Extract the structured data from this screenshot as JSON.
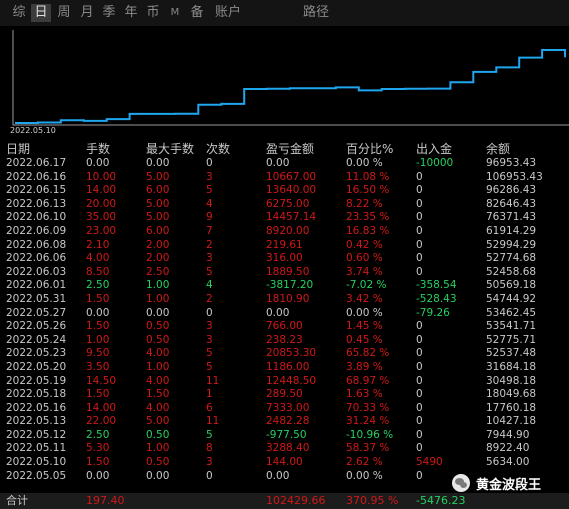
{
  "tabs": [
    {
      "label": "综",
      "active": false
    },
    {
      "label": "日",
      "active": true
    },
    {
      "label": "周",
      "active": false
    },
    {
      "label": "月",
      "active": false
    },
    {
      "label": "季",
      "active": false
    },
    {
      "label": "年",
      "active": false
    },
    {
      "label": "币",
      "active": false
    },
    {
      "label": "M",
      "active": false
    },
    {
      "label": "备",
      "active": false
    },
    {
      "label": "账户",
      "active": false
    },
    {
      "label": "路径",
      "active": false
    }
  ],
  "chart_data": {
    "type": "line",
    "x_start_label": "2022.05.10",
    "x": [
      "2022.05.05",
      "2022.05.10",
      "2022.05.11",
      "2022.05.12",
      "2022.05.13",
      "2022.05.16",
      "2022.05.17",
      "2022.05.18",
      "2022.05.19",
      "2022.05.20",
      "2022.05.23",
      "2022.05.24",
      "2022.05.26",
      "2022.05.27",
      "2022.05.31",
      "2022.06.01",
      "2022.06.03",
      "2022.06.06",
      "2022.06.08",
      "2022.06.09",
      "2022.06.10",
      "2022.06.13",
      "2022.06.15",
      "2022.06.16",
      "2022.06.17"
    ],
    "values": [
      5000.0,
      5634.0,
      8922.4,
      7944.9,
      10427.18,
      17760.18,
      17760.18,
      18049.68,
      30498.18,
      31684.18,
      52537.48,
      52775.71,
      53541.71,
      53462.45,
      54744.92,
      50569.18,
      52458.68,
      52774.68,
      52994.29,
      61914.29,
      76371.43,
      82646.43,
      96286.43,
      106953.43,
      96953.43
    ],
    "color": "#1ea7ef"
  },
  "table": {
    "headers": [
      "日期",
      "手数",
      "最大手数",
      "次数",
      "盈亏金额",
      "百分比%",
      "出入金",
      "余额"
    ],
    "rows": [
      {
        "date": "2022.06.17",
        "lots": "0.00",
        "max_lots": "0.00",
        "count": "0",
        "pnl": "0.00",
        "pct": "0.00 %",
        "flow": "-10000",
        "balance": "96953.43",
        "tone": "neutral",
        "flow_tone": "neg"
      },
      {
        "date": "2022.06.16",
        "lots": "10.00",
        "max_lots": "5.00",
        "count": "3",
        "pnl": "10667.00",
        "pct": "11.08 %",
        "flow": "0",
        "balance": "106953.43",
        "tone": "pos",
        "flow_tone": "neutral"
      },
      {
        "date": "2022.06.15",
        "lots": "14.00",
        "max_lots": "6.00",
        "count": "5",
        "pnl": "13640.00",
        "pct": "16.50 %",
        "flow": "0",
        "balance": "96286.43",
        "tone": "pos",
        "flow_tone": "neutral"
      },
      {
        "date": "2022.06.13",
        "lots": "20.00",
        "max_lots": "5.00",
        "count": "4",
        "pnl": "6275.00",
        "pct": "8.22 %",
        "flow": "0",
        "balance": "82646.43",
        "tone": "pos",
        "flow_tone": "neutral"
      },
      {
        "date": "2022.06.10",
        "lots": "35.00",
        "max_lots": "5.00",
        "count": "9",
        "pnl": "14457.14",
        "pct": "23.35 %",
        "flow": "0",
        "balance": "76371.43",
        "tone": "pos",
        "flow_tone": "neutral"
      },
      {
        "date": "2022.06.09",
        "lots": "23.00",
        "max_lots": "6.00",
        "count": "7",
        "pnl": "8920.00",
        "pct": "16.83 %",
        "flow": "0",
        "balance": "61914.29",
        "tone": "pos",
        "flow_tone": "neutral"
      },
      {
        "date": "2022.06.08",
        "lots": "2.10",
        "max_lots": "2.00",
        "count": "2",
        "pnl": "219.61",
        "pct": "0.42 %",
        "flow": "0",
        "balance": "52994.29",
        "tone": "pos",
        "flow_tone": "neutral"
      },
      {
        "date": "2022.06.06",
        "lots": "4.00",
        "max_lots": "2.00",
        "count": "3",
        "pnl": "316.00",
        "pct": "0.60 %",
        "flow": "0",
        "balance": "52774.68",
        "tone": "pos",
        "flow_tone": "neutral"
      },
      {
        "date": "2022.06.03",
        "lots": "8.50",
        "max_lots": "2.50",
        "count": "5",
        "pnl": "1889.50",
        "pct": "3.74 %",
        "flow": "0",
        "balance": "52458.68",
        "tone": "pos",
        "flow_tone": "neutral"
      },
      {
        "date": "2022.06.01",
        "lots": "2.50",
        "max_lots": "1.00",
        "count": "4",
        "pnl": "-3817.20",
        "pct": "-7.02 %",
        "flow": "-358.54",
        "balance": "50569.18",
        "tone": "neg",
        "flow_tone": "neg"
      },
      {
        "date": "2022.05.31",
        "lots": "1.50",
        "max_lots": "1.00",
        "count": "2",
        "pnl": "1810.90",
        "pct": "3.42 %",
        "flow": "-528.43",
        "balance": "54744.92",
        "tone": "pos",
        "flow_tone": "neg"
      },
      {
        "date": "2022.05.27",
        "lots": "0.00",
        "max_lots": "0.00",
        "count": "0",
        "pnl": "0.00",
        "pct": "0.00 %",
        "flow": "-79.26",
        "balance": "53462.45",
        "tone": "neutral",
        "flow_tone": "neg"
      },
      {
        "date": "2022.05.26",
        "lots": "1.50",
        "max_lots": "0.50",
        "count": "3",
        "pnl": "766.00",
        "pct": "1.45 %",
        "flow": "0",
        "balance": "53541.71",
        "tone": "pos",
        "flow_tone": "neutral"
      },
      {
        "date": "2022.05.24",
        "lots": "1.00",
        "max_lots": "0.50",
        "count": "3",
        "pnl": "238.23",
        "pct": "0.45 %",
        "flow": "0",
        "balance": "52775.71",
        "tone": "pos",
        "flow_tone": "neutral"
      },
      {
        "date": "2022.05.23",
        "lots": "9.50",
        "max_lots": "4.00",
        "count": "5",
        "pnl": "20853.30",
        "pct": "65.82 %",
        "flow": "0",
        "balance": "52537.48",
        "tone": "pos",
        "flow_tone": "neutral"
      },
      {
        "date": "2022.05.20",
        "lots": "3.50",
        "max_lots": "1.00",
        "count": "5",
        "pnl": "1186.00",
        "pct": "3.89 %",
        "flow": "0",
        "balance": "31684.18",
        "tone": "pos",
        "flow_tone": "neutral"
      },
      {
        "date": "2022.05.19",
        "lots": "14.50",
        "max_lots": "4.00",
        "count": "11",
        "pnl": "12448.50",
        "pct": "68.97 %",
        "flow": "0",
        "balance": "30498.18",
        "tone": "pos",
        "flow_tone": "neutral"
      },
      {
        "date": "2022.05.18",
        "lots": "1.50",
        "max_lots": "1.50",
        "count": "1",
        "pnl": "289.50",
        "pct": "1.63 %",
        "flow": "0",
        "balance": "18049.68",
        "tone": "pos",
        "flow_tone": "neutral"
      },
      {
        "date": "2022.05.16",
        "lots": "14.00",
        "max_lots": "4.00",
        "count": "6",
        "pnl": "7333.00",
        "pct": "70.33 %",
        "flow": "0",
        "balance": "17760.18",
        "tone": "pos",
        "flow_tone": "neutral"
      },
      {
        "date": "2022.05.13",
        "lots": "22.00",
        "max_lots": "5.00",
        "count": "11",
        "pnl": "2482.28",
        "pct": "31.24 %",
        "flow": "0",
        "balance": "10427.18",
        "tone": "pos",
        "flow_tone": "neutral"
      },
      {
        "date": "2022.05.12",
        "lots": "2.50",
        "max_lots": "0.50",
        "count": "5",
        "pnl": "-977.50",
        "pct": "-10.96 %",
        "flow": "0",
        "balance": "7944.90",
        "tone": "neg",
        "flow_tone": "neutral"
      },
      {
        "date": "2022.05.11",
        "lots": "5.30",
        "max_lots": "1.00",
        "count": "8",
        "pnl": "3288.40",
        "pct": "58.37 %",
        "flow": "0",
        "balance": "8922.40",
        "tone": "pos",
        "flow_tone": "neutral"
      },
      {
        "date": "2022.05.10",
        "lots": "1.50",
        "max_lots": "0.50",
        "count": "3",
        "pnl": "144.00",
        "pct": "2.62 %",
        "flow": "5490",
        "balance": "5634.00",
        "tone": "pos",
        "flow_tone": "pos"
      },
      {
        "date": "2022.05.05",
        "lots": "0.00",
        "max_lots": "0.00",
        "count": "0",
        "pnl": "0.00",
        "pct": "0.00 %",
        "flow": "0",
        "balance": "",
        "tone": "neutral",
        "flow_tone": "neutral"
      }
    ],
    "total": {
      "label": "合计",
      "lots": "197.40",
      "pnl": "102429.66",
      "pct": "370.95 %",
      "flow": "-5476.23"
    }
  },
  "watermark": {
    "text": "黄金波段王"
  },
  "colors": {
    "positive": "#d01818",
    "negative": "#25d060",
    "neutral": "#c8c8c8",
    "line": "#1ea7ef"
  }
}
